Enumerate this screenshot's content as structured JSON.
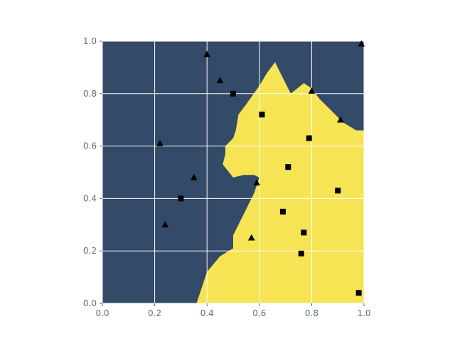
{
  "chart_data": {
    "type": "scatter",
    "title": "",
    "xlabel": "",
    "ylabel": "",
    "xlim": [
      0.0,
      1.0
    ],
    "ylim": [
      0.0,
      1.0
    ],
    "x_ticks": [
      "0.0",
      "0.2",
      "0.4",
      "0.6",
      "0.8",
      "1.0"
    ],
    "y_ticks": [
      "0.0",
      "0.2",
      "0.4",
      "0.6",
      "0.8",
      "1.0"
    ],
    "grid": true,
    "background_color": "#334a68",
    "region_color": "#f7e454",
    "grid_color": "#ffffff",
    "marker_color": "#000000",
    "decision_region_boundary": [
      [
        0.36,
        0.0
      ],
      [
        0.38,
        0.06
      ],
      [
        0.4,
        0.12
      ],
      [
        0.45,
        0.18
      ],
      [
        0.5,
        0.21
      ],
      [
        0.5,
        0.26
      ],
      [
        0.52,
        0.3
      ],
      [
        0.55,
        0.36
      ],
      [
        0.58,
        0.42
      ],
      [
        0.6,
        0.48
      ],
      [
        0.58,
        0.49
      ],
      [
        0.54,
        0.49
      ],
      [
        0.5,
        0.48
      ],
      [
        0.46,
        0.53
      ],
      [
        0.47,
        0.57
      ],
      [
        0.47,
        0.6
      ],
      [
        0.5,
        0.63
      ],
      [
        0.51,
        0.66
      ],
      [
        0.52,
        0.72
      ],
      [
        0.55,
        0.76
      ],
      [
        0.6,
        0.83
      ],
      [
        0.63,
        0.88
      ],
      [
        0.66,
        0.92
      ],
      [
        0.69,
        0.86
      ],
      [
        0.72,
        0.8
      ],
      [
        0.77,
        0.84
      ],
      [
        0.8,
        0.82
      ],
      [
        0.83,
        0.78
      ],
      [
        0.87,
        0.74
      ],
      [
        0.92,
        0.69
      ],
      [
        0.97,
        0.66
      ],
      [
        1.0,
        0.66
      ],
      [
        1.0,
        0.0
      ]
    ],
    "series": [
      {
        "marker": "triangle",
        "points": [
          [
            0.4,
            0.95
          ],
          [
            0.45,
            0.85
          ],
          [
            0.99,
            0.99
          ],
          [
            0.8,
            0.81
          ],
          [
            0.91,
            0.7
          ],
          [
            0.22,
            0.61
          ],
          [
            0.35,
            0.48
          ],
          [
            0.59,
            0.46
          ],
          [
            0.24,
            0.3
          ],
          [
            0.57,
            0.25
          ]
        ]
      },
      {
        "marker": "square",
        "points": [
          [
            0.5,
            0.8
          ],
          [
            0.61,
            0.72
          ],
          [
            0.79,
            0.63
          ],
          [
            0.71,
            0.52
          ],
          [
            0.9,
            0.43
          ],
          [
            0.3,
            0.4
          ],
          [
            0.69,
            0.35
          ],
          [
            0.77,
            0.27
          ],
          [
            0.76,
            0.19
          ],
          [
            0.98,
            0.04
          ]
        ]
      }
    ]
  }
}
